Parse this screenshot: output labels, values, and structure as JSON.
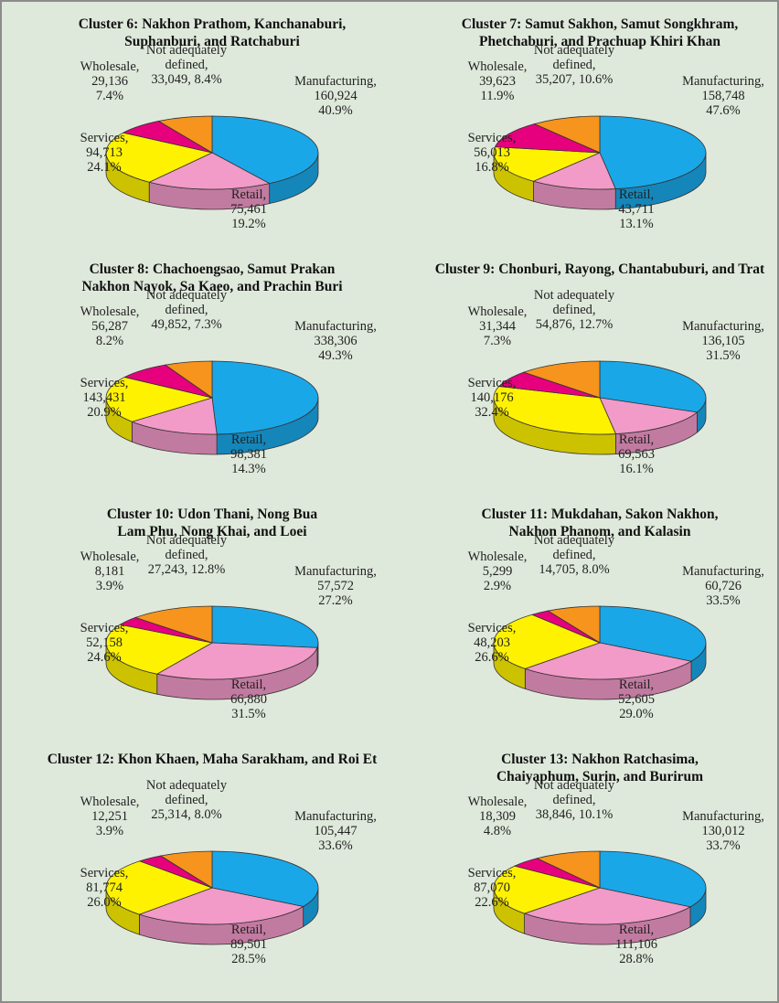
{
  "chart_data": [
    {
      "type": "pie3d",
      "title": "Cluster 6: Nakhon Prathom, Kanchanaburi, Suphanburi, and Ratchaburi",
      "categories": [
        "Manufacturing,",
        "Retail,",
        "Services,",
        "Wholesale,",
        "Not adequately defined,"
      ],
      "values": [
        160924,
        75461,
        94713,
        29136,
        33049
      ],
      "value_labels": [
        "160,924",
        "75,461",
        "94,713",
        "29,136",
        "33,049,"
      ],
      "percents": [
        40.9,
        19.2,
        24.1,
        7.4,
        8.4
      ],
      "percent_labels": [
        "40.9%",
        "19.2%",
        "24.1%",
        "7.4%",
        "8.4%"
      ],
      "colors": [
        "#1aa7e8",
        "#f29ac8",
        "#fff200",
        "#e6007e",
        "#f7941d"
      ]
    },
    {
      "type": "pie3d",
      "title": "Cluster 7: Samut Sakhon, Samut Songkhram, Phetchaburi, and Prachuap Khiri Khan",
      "categories": [
        "Manufacturing,",
        "Retail,",
        "Services,",
        "Wholesale,",
        "Not adequately defined,"
      ],
      "values": [
        158748,
        43711,
        56013,
        39623,
        35207
      ],
      "value_labels": [
        "158,748",
        "43,711",
        "56,013",
        "39,623",
        "35,207,"
      ],
      "percents": [
        47.6,
        13.1,
        16.8,
        11.9,
        10.6
      ],
      "percent_labels": [
        "47.6%",
        "13.1%",
        "16.8%",
        "11.9%",
        "10.6%"
      ],
      "colors": [
        "#1aa7e8",
        "#f29ac8",
        "#fff200",
        "#e6007e",
        "#f7941d"
      ]
    },
    {
      "type": "pie3d",
      "title": "Cluster 8: Chachoengsao, Samut Prakan Nakhon Nayok, Sa Kaeo, and Prachin Buri",
      "categories": [
        "Manufacturing,",
        "Retail,",
        "Services,",
        "Wholesale,",
        "Not adequately defined,"
      ],
      "values": [
        338306,
        98381,
        143431,
        56287,
        49852
      ],
      "value_labels": [
        "338,306",
        "98,381",
        "143,431",
        "56,287",
        "49,852,"
      ],
      "percents": [
        49.3,
        14.3,
        20.9,
        8.2,
        7.3
      ],
      "percent_labels": [
        "49.3%",
        "14.3%",
        "20.9%",
        "8.2%",
        "7.3%"
      ],
      "colors": [
        "#1aa7e8",
        "#f29ac8",
        "#fff200",
        "#e6007e",
        "#f7941d"
      ]
    },
    {
      "type": "pie3d",
      "title": "Cluster 9: Chonburi, Rayong, Chantabuburi, and Trat",
      "categories": [
        "Manufacturing,",
        "Retail,",
        "Services,",
        "Wholesale,",
        "Not adequately defined,"
      ],
      "values": [
        136105,
        69563,
        140176,
        31344,
        54876
      ],
      "value_labels": [
        "136,105",
        "69,563",
        "140,176",
        "31,344",
        "54,876,"
      ],
      "percents": [
        31.5,
        16.1,
        32.4,
        7.3,
        12.7
      ],
      "percent_labels": [
        "31.5%",
        "16.1%",
        "32.4%",
        "7.3%",
        "12.7%"
      ],
      "colors": [
        "#1aa7e8",
        "#f29ac8",
        "#fff200",
        "#e6007e",
        "#f7941d"
      ]
    },
    {
      "type": "pie3d",
      "title": "Cluster 10: Udon Thani, Nong Bua Lam Phu, Nong Khai, and Loei",
      "categories": [
        "Manufacturing,",
        "Retail,",
        "Services,",
        "Wholesale,",
        "Not adequately defined,"
      ],
      "values": [
        57572,
        66880,
        52158,
        8181,
        27243
      ],
      "value_labels": [
        "57,572",
        "66,880",
        "52,158",
        "8,181",
        "27,243,"
      ],
      "percents": [
        27.2,
        31.5,
        24.6,
        3.9,
        12.8
      ],
      "percent_labels": [
        "27.2%",
        "31.5%",
        "24.6%",
        "3.9%",
        "12.8%"
      ],
      "colors": [
        "#1aa7e8",
        "#f29ac8",
        "#fff200",
        "#e6007e",
        "#f7941d"
      ]
    },
    {
      "type": "pie3d",
      "title": "Cluster 11: Mukdahan, Sakon Nakhon, Nakhon Phanom, and Kalasin",
      "categories": [
        "Manufacturing,",
        "Retail,",
        "Services,",
        "Wholesale,",
        "Not adequately defined,"
      ],
      "values": [
        60726,
        52605,
        48203,
        5299,
        14705
      ],
      "value_labels": [
        "60,726",
        "52,605",
        "48,203",
        "5,299",
        "14,705,"
      ],
      "percents": [
        33.5,
        29.0,
        26.6,
        2.9,
        8.0
      ],
      "percent_labels": [
        "33.5%",
        "29.0%",
        "26.6%",
        "2.9%",
        "8.0%"
      ],
      "colors": [
        "#1aa7e8",
        "#f29ac8",
        "#fff200",
        "#e6007e",
        "#f7941d"
      ]
    },
    {
      "type": "pie3d",
      "title": "Cluster 12: Khon Khaen, Maha Sarakham, and Roi Et",
      "categories": [
        "Manufacturing,",
        "Retail,",
        "Services,",
        "Wholesale,",
        "Not adequately defined,"
      ],
      "values": [
        105447,
        89501,
        81774,
        12251,
        25314
      ],
      "value_labels": [
        "105,447",
        "89,501",
        "81,774",
        "12,251",
        "25,314,"
      ],
      "percents": [
        33.6,
        28.5,
        26.0,
        3.9,
        8.0
      ],
      "percent_labels": [
        "33.6%",
        "28.5%",
        "26.0%",
        "3.9%",
        "8.0%"
      ],
      "colors": [
        "#1aa7e8",
        "#f29ac8",
        "#fff200",
        "#e6007e",
        "#f7941d"
      ]
    },
    {
      "type": "pie3d",
      "title": "Cluster 13: Nakhon Ratchasima, Chaiyaphum, Surin, and Burirum",
      "categories": [
        "Manufacturing,",
        "Retail,",
        "Services,",
        "Wholesale,",
        "Not adequately defined,"
      ],
      "values": [
        130012,
        111106,
        87070,
        18309,
        38846
      ],
      "value_labels": [
        "130,012",
        "111,106",
        "87,070",
        "18,309",
        "38,846,"
      ],
      "percents": [
        33.7,
        28.8,
        22.6,
        4.8,
        10.1
      ],
      "percent_labels": [
        "33.7%",
        "28.8%",
        "22.6%",
        "4.8%",
        "10.1%"
      ],
      "colors": [
        "#1aa7e8",
        "#f29ac8",
        "#fff200",
        "#e6007e",
        "#f7941d"
      ]
    }
  ]
}
